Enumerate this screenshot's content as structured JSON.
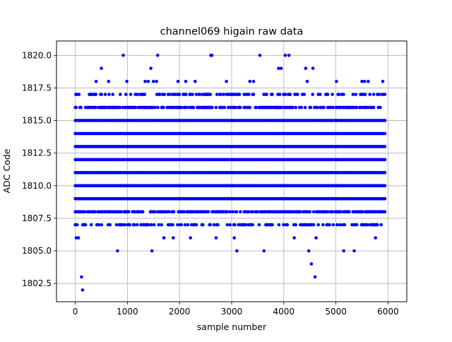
{
  "chart_data": {
    "type": "scatter",
    "title": "channel069 higain raw data",
    "xlabel": "sample number",
    "ylabel": "ADC Code",
    "xlim": [
      -360,
      6360
    ],
    "ylim": [
      1801.1,
      1821.1
    ],
    "xticks": [
      0,
      1000,
      2000,
      3000,
      4000,
      5000,
      6000
    ],
    "xtick_labels": [
      "0",
      "1000",
      "2000",
      "3000",
      "4000",
      "5000",
      "6000"
    ],
    "yticks": [
      1802.5,
      1805.0,
      1807.5,
      1810.0,
      1812.5,
      1815.0,
      1817.5,
      1820.0
    ],
    "ytick_labels": [
      "1802.5",
      "1805.0",
      "1807.5",
      "1810.0",
      "1812.5",
      "1815.0",
      "1817.5",
      "1820.0"
    ],
    "grid": true,
    "marker_color": "#0000ff",
    "series": [
      {
        "x_range": [
          0,
          5950
        ],
        "dense_levels": [
          1809,
          1810,
          1811,
          1812,
          1813,
          1814,
          1815
        ],
        "medium_levels": [
          1808,
          1816
        ],
        "sparse_levels": [
          1807,
          1817
        ],
        "points": [
          {
            "x": 10,
            "y": 1817
          },
          {
            "x": 20,
            "y": 1806
          },
          {
            "x": 60,
            "y": 1806
          },
          {
            "x": 120,
            "y": 1803
          },
          {
            "x": 140,
            "y": 1802
          },
          {
            "x": 400,
            "y": 1818
          },
          {
            "x": 500,
            "y": 1819
          },
          {
            "x": 640,
            "y": 1818
          },
          {
            "x": 810,
            "y": 1805
          },
          {
            "x": 920,
            "y": 1820
          },
          {
            "x": 990,
            "y": 1818
          },
          {
            "x": 1340,
            "y": 1818
          },
          {
            "x": 1400,
            "y": 1818
          },
          {
            "x": 1450,
            "y": 1819
          },
          {
            "x": 1470,
            "y": 1805
          },
          {
            "x": 1500,
            "y": 1818
          },
          {
            "x": 1560,
            "y": 1818
          },
          {
            "x": 1580,
            "y": 1820
          },
          {
            "x": 1700,
            "y": 1806
          },
          {
            "x": 1880,
            "y": 1806
          },
          {
            "x": 1970,
            "y": 1818
          },
          {
            "x": 2120,
            "y": 1818
          },
          {
            "x": 2210,
            "y": 1806
          },
          {
            "x": 2300,
            "y": 1818
          },
          {
            "x": 2600,
            "y": 1820
          },
          {
            "x": 2620,
            "y": 1820
          },
          {
            "x": 2700,
            "y": 1806
          },
          {
            "x": 2900,
            "y": 1818
          },
          {
            "x": 3050,
            "y": 1806
          },
          {
            "x": 3100,
            "y": 1805
          },
          {
            "x": 3350,
            "y": 1818
          },
          {
            "x": 3420,
            "y": 1818
          },
          {
            "x": 3540,
            "y": 1820
          },
          {
            "x": 3620,
            "y": 1805
          },
          {
            "x": 3900,
            "y": 1819
          },
          {
            "x": 3950,
            "y": 1819
          },
          {
            "x": 4030,
            "y": 1820
          },
          {
            "x": 4100,
            "y": 1820
          },
          {
            "x": 4200,
            "y": 1806
          },
          {
            "x": 4420,
            "y": 1819
          },
          {
            "x": 4450,
            "y": 1818
          },
          {
            "x": 4480,
            "y": 1805
          },
          {
            "x": 4530,
            "y": 1804
          },
          {
            "x": 4560,
            "y": 1819
          },
          {
            "x": 4600,
            "y": 1803
          },
          {
            "x": 4620,
            "y": 1806
          },
          {
            "x": 5010,
            "y": 1818
          },
          {
            "x": 5150,
            "y": 1805
          },
          {
            "x": 5350,
            "y": 1805
          },
          {
            "x": 5500,
            "y": 1818
          },
          {
            "x": 5550,
            "y": 1818
          },
          {
            "x": 5620,
            "y": 1818
          },
          {
            "x": 5760,
            "y": 1806
          },
          {
            "x": 5900,
            "y": 1818
          }
        ]
      }
    ]
  }
}
